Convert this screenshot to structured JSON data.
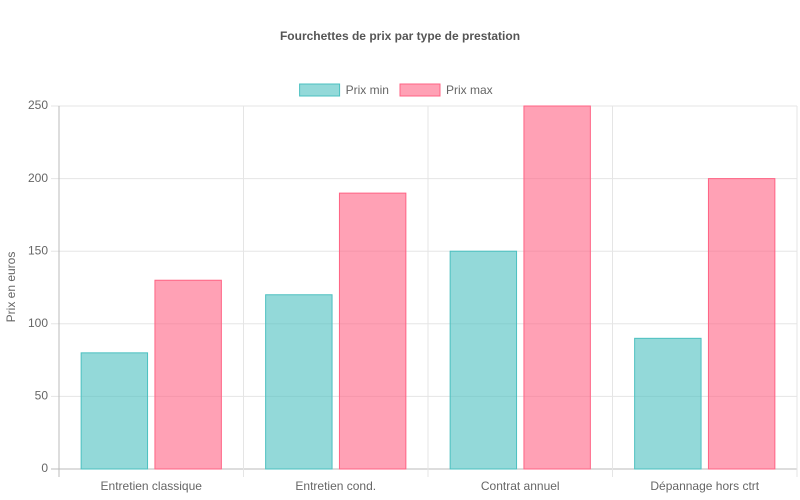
{
  "chart_data": {
    "type": "bar",
    "title": "Fourchettes de prix par type de prestation",
    "y_label": "Prix en euros",
    "categories": [
      "Entretien classique",
      "Entretien cond.",
      "Contrat annuel",
      "Dépannage hors ctrt"
    ],
    "series": [
      {
        "name": "Prix min",
        "color": "#4bc0c0",
        "values": [
          80,
          120,
          150,
          90
        ]
      },
      {
        "name": "Prix max",
        "color": "#ff6384",
        "values": [
          130,
          190,
          250,
          200
        ]
      }
    ],
    "ylim": [
      0,
      250
    ],
    "yticks": [
      0,
      50,
      100,
      150,
      200,
      250
    ],
    "grid": true,
    "legend": "top"
  }
}
